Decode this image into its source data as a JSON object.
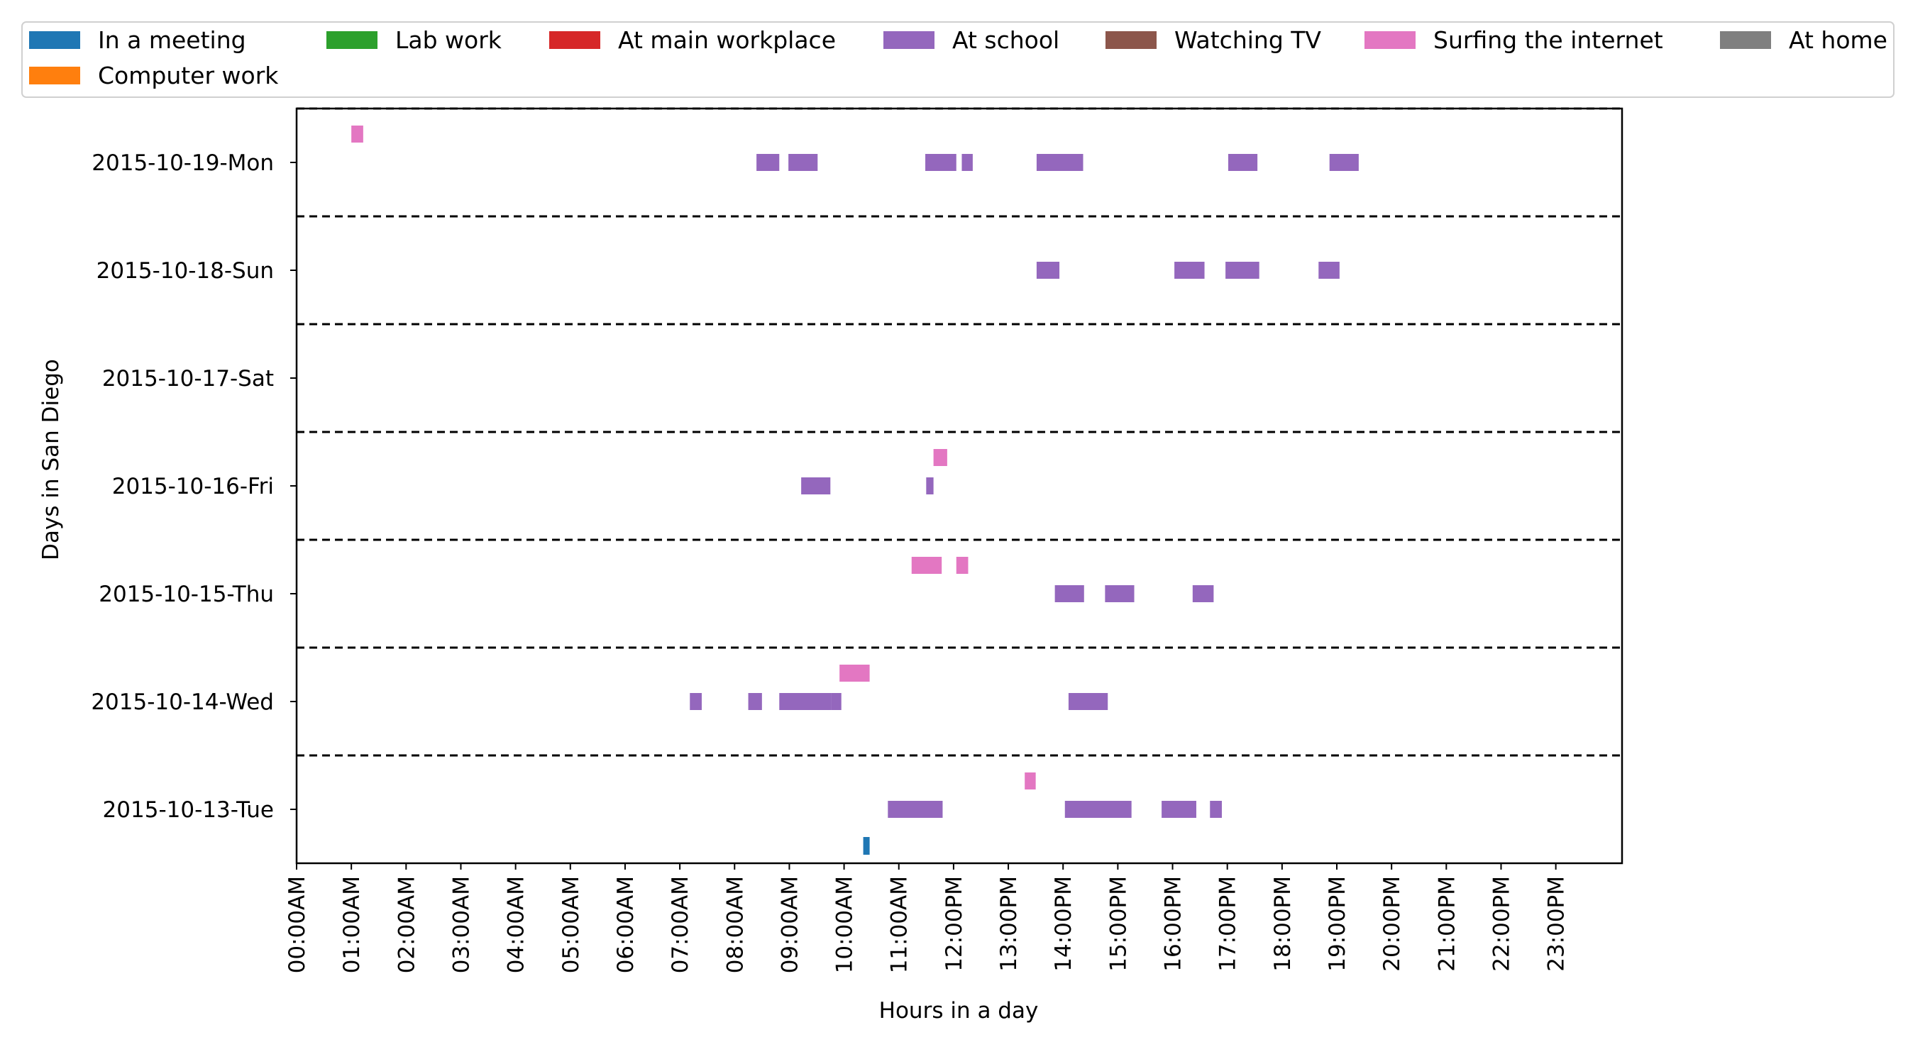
{
  "chart_data": {
    "type": "timeline",
    "xlabel": "Hours in a day",
    "ylabel": "Days in San Diego",
    "x_range": [
      "00:00",
      "24:00"
    ],
    "x_ticks": [
      "00:00AM",
      "01:00AM",
      "02:00AM",
      "03:00AM",
      "04:00AM",
      "05:00AM",
      "06:00AM",
      "07:00AM",
      "08:00AM",
      "09:00AM",
      "10:00AM",
      "11:00AM",
      "12:00PM",
      "13:00PM",
      "14:00PM",
      "15:00PM",
      "16:00PM",
      "17:00PM",
      "18:00PM",
      "19:00PM",
      "20:00PM",
      "21:00PM",
      "22:00PM",
      "23:00PM"
    ],
    "days": [
      "2015-10-19-Mon",
      "2015-10-18-Sun",
      "2015-10-17-Sat",
      "2015-10-16-Fri",
      "2015-10-15-Thu",
      "2015-10-14-Wed",
      "2015-10-13-Tue"
    ],
    "legend_position": "top",
    "day_separators": "dashed",
    "categories": [
      {
        "name": "In a meeting",
        "color": "#1f77b4"
      },
      {
        "name": "Lab work",
        "color": "#2ca02c"
      },
      {
        "name": "At main workplace",
        "color": "#d62728"
      },
      {
        "name": "At school",
        "color": "#9467bd"
      },
      {
        "name": "Watching TV",
        "color": "#8c564b"
      },
      {
        "name": "Surfing the internet",
        "color": "#e377c2"
      },
      {
        "name": "At home",
        "color": "#7f7f7f"
      },
      {
        "name": "Computer work",
        "color": "#ff7f0e"
      }
    ],
    "segments": [
      {
        "day": "2015-10-19-Mon",
        "category": "Surfing the internet",
        "start": "01:00",
        "end": "01:13"
      },
      {
        "day": "2015-10-19-Mon",
        "category": "At school",
        "start": "08:24",
        "end": "08:49"
      },
      {
        "day": "2015-10-19-Mon",
        "category": "At school",
        "start": "08:59",
        "end": "09:31"
      },
      {
        "day": "2015-10-19-Mon",
        "category": "At school",
        "start": "11:29",
        "end": "12:03"
      },
      {
        "day": "2015-10-19-Mon",
        "category": "At school",
        "start": "12:09",
        "end": "12:21"
      },
      {
        "day": "2015-10-19-Mon",
        "category": "At school",
        "start": "13:31",
        "end": "14:22"
      },
      {
        "day": "2015-10-19-Mon",
        "category": "At school",
        "start": "17:01",
        "end": "17:33"
      },
      {
        "day": "2015-10-19-Mon",
        "category": "At school",
        "start": "18:52",
        "end": "19:24"
      },
      {
        "day": "2015-10-18-Sun",
        "category": "At school",
        "start": "13:31",
        "end": "13:56"
      },
      {
        "day": "2015-10-18-Sun",
        "category": "At school",
        "start": "16:02",
        "end": "16:35"
      },
      {
        "day": "2015-10-18-Sun",
        "category": "At school",
        "start": "16:58",
        "end": "17:35"
      },
      {
        "day": "2015-10-18-Sun",
        "category": "At school",
        "start": "18:40",
        "end": "19:03"
      },
      {
        "day": "2015-10-16-Fri",
        "category": "Surfing the internet",
        "start": "11:38",
        "end": "11:53"
      },
      {
        "day": "2015-10-16-Fri",
        "category": "At school",
        "start": "09:13",
        "end": "09:45"
      },
      {
        "day": "2015-10-16-Fri",
        "category": "At school",
        "start": "11:30",
        "end": "11:38"
      },
      {
        "day": "2015-10-15-Thu",
        "category": "Surfing the internet",
        "start": "11:14",
        "end": "11:47"
      },
      {
        "day": "2015-10-15-Thu",
        "category": "Surfing the internet",
        "start": "12:03",
        "end": "12:16"
      },
      {
        "day": "2015-10-15-Thu",
        "category": "At school",
        "start": "13:51",
        "end": "14:23"
      },
      {
        "day": "2015-10-15-Thu",
        "category": "At school",
        "start": "14:46",
        "end": "15:18"
      },
      {
        "day": "2015-10-15-Thu",
        "category": "At school",
        "start": "16:22",
        "end": "16:45"
      },
      {
        "day": "2015-10-14-Wed",
        "category": "Surfing the internet",
        "start": "09:55",
        "end": "10:28"
      },
      {
        "day": "2015-10-14-Wed",
        "category": "At school",
        "start": "07:11",
        "end": "07:24"
      },
      {
        "day": "2015-10-14-Wed",
        "category": "At school",
        "start": "08:15",
        "end": "08:30"
      },
      {
        "day": "2015-10-14-Wed",
        "category": "At school",
        "start": "08:49",
        "end": "09:46"
      },
      {
        "day": "2015-10-14-Wed",
        "category": "At school",
        "start": "09:46",
        "end": "09:57"
      },
      {
        "day": "2015-10-14-Wed",
        "category": "At school",
        "start": "14:06",
        "end": "14:49"
      },
      {
        "day": "2015-10-13-Tue",
        "category": "Surfing the internet",
        "start": "13:18",
        "end": "13:30"
      },
      {
        "day": "2015-10-13-Tue",
        "category": "At school",
        "start": "10:48",
        "end": "11:48"
      },
      {
        "day": "2015-10-13-Tue",
        "category": "At school",
        "start": "14:02",
        "end": "15:15"
      },
      {
        "day": "2015-10-13-Tue",
        "category": "At school",
        "start": "15:48",
        "end": "16:26"
      },
      {
        "day": "2015-10-13-Tue",
        "category": "At school",
        "start": "16:41",
        "end": "16:54"
      },
      {
        "day": "2015-10-13-Tue",
        "category": "In a meeting",
        "start": "10:21",
        "end": "10:28"
      }
    ]
  }
}
